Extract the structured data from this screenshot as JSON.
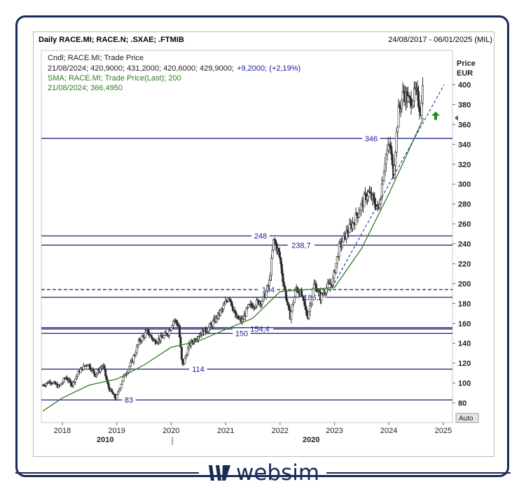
{
  "header": {
    "title": "Daily RACE.MI; RACE.N; .SXAE; .FTMIB",
    "date_range": "24/08/2017 - 06/01/2025 (MIL)"
  },
  "legend": {
    "line1": "Cndl; RACE.MI; Trade Price",
    "line2_values": "21/08/2024; 420,9000; 431,2000; 420,6000; 429,9000;",
    "line2_change": "+9,2000; (+2,19%)",
    "line3": "SMA; RACE.MI; Trade Price(Last);  200",
    "line4": "21/08/2024; 366,4950"
  },
  "axis": {
    "price_label": "Price",
    "currency_label": "EUR",
    "auto_label": "Auto",
    "decade_labels": [
      "2010",
      "2020"
    ]
  },
  "brand": {
    "name": "websim"
  },
  "colors": {
    "candles": "#2b2b2b",
    "sma": "#2e7d22",
    "levels": "#1a1a80",
    "label_blue": "#1a1a9c",
    "frame": "#1a2a57",
    "arrow": "#1e8c1e"
  },
  "chart_data": {
    "type": "candlestick",
    "title": "Daily RACE.MI; RACE.N; .SXAE; .FTMIB",
    "x_axis": {
      "ticks": [
        "2018",
        "2019",
        "2020",
        "2021",
        "2022",
        "2023",
        "2024",
        "2025"
      ]
    },
    "y_axis": {
      "label": "Price EUR",
      "ticks": [
        80,
        100,
        120,
        140,
        160,
        180,
        200,
        220,
        240,
        260,
        280,
        300,
        320,
        340,
        360,
        380,
        400
      ],
      "range": [
        70,
        432
      ]
    },
    "price_series": [
      [
        "2017-08-24",
        98
      ],
      [
        "2017-10-15",
        102
      ],
      [
        "2017-12-10",
        96
      ],
      [
        "2018-01-25",
        106
      ],
      [
        "2018-03-05",
        98
      ],
      [
        "2018-04-25",
        112
      ],
      [
        "2018-06-20",
        120
      ],
      [
        "2018-08-10",
        108
      ],
      [
        "2018-10-01",
        118
      ],
      [
        "2018-11-05",
        96
      ],
      [
        "2018-12-27",
        84
      ],
      [
        "2019-02-10",
        104
      ],
      [
        "2019-04-15",
        122
      ],
      [
        "2019-06-01",
        142
      ],
      [
        "2019-07-25",
        152
      ],
      [
        "2019-09-10",
        142
      ],
      [
        "2019-10-25",
        145
      ],
      [
        "2019-12-10",
        150
      ],
      [
        "2020-01-20",
        164
      ],
      [
        "2020-02-20",
        158
      ],
      [
        "2020-03-16",
        116
      ],
      [
        "2020-05-01",
        138
      ],
      [
        "2020-07-01",
        148
      ],
      [
        "2020-09-01",
        154
      ],
      [
        "2020-10-15",
        162
      ],
      [
        "2020-12-10",
        174
      ],
      [
        "2021-01-25",
        188
      ],
      [
        "2021-03-10",
        166
      ],
      [
        "2021-04-20",
        162
      ],
      [
        "2021-06-01",
        176
      ],
      [
        "2021-07-20",
        180
      ],
      [
        "2021-09-10",
        184
      ],
      [
        "2021-10-20",
        200
      ],
      [
        "2021-11-20",
        245
      ],
      [
        "2021-12-28",
        228
      ],
      [
        "2022-01-25",
        200
      ],
      [
        "2022-03-08",
        166
      ],
      [
        "2022-04-20",
        196
      ],
      [
        "2022-05-25",
        188
      ],
      [
        "2022-07-05",
        166
      ],
      [
        "2022-08-20",
        200
      ],
      [
        "2022-09-30",
        186
      ],
      [
        "2022-11-10",
        196
      ],
      [
        "2022-12-20",
        202
      ],
      [
        "2023-02-01",
        236
      ],
      [
        "2023-03-20",
        250
      ],
      [
        "2023-05-10",
        262
      ],
      [
        "2023-06-30",
        278
      ],
      [
        "2023-08-15",
        292
      ],
      [
        "2023-09-25",
        282
      ],
      [
        "2023-10-25",
        274
      ],
      [
        "2023-12-10",
        328
      ],
      [
        "2024-01-10",
        340
      ],
      [
        "2024-01-30",
        308
      ],
      [
        "2024-03-05",
        372
      ],
      [
        "2024-04-10",
        392
      ],
      [
        "2024-05-20",
        382
      ],
      [
        "2024-07-01",
        392
      ],
      [
        "2024-08-06",
        372
      ],
      [
        "2024-08-21",
        429.9
      ]
    ],
    "sma_200": [
      [
        "2017-08-24",
        72
      ],
      [
        "2018-01-01",
        85
      ],
      [
        "2018-07-01",
        98
      ],
      [
        "2019-01-01",
        104
      ],
      [
        "2019-07-01",
        118
      ],
      [
        "2020-01-01",
        136
      ],
      [
        "2020-07-01",
        142
      ],
      [
        "2021-01-01",
        154
      ],
      [
        "2021-07-01",
        165
      ],
      [
        "2022-01-01",
        192
      ],
      [
        "2022-07-01",
        194
      ],
      [
        "2023-01-01",
        196
      ],
      [
        "2023-07-01",
        235
      ],
      [
        "2024-01-01",
        290
      ],
      [
        "2024-08-21",
        366.495
      ]
    ],
    "horizontal_levels": [
      {
        "value": 346,
        "label": "346",
        "style": "solid"
      },
      {
        "value": 248,
        "label": "248",
        "style": "solid"
      },
      {
        "value": 238.7,
        "label": "238,7",
        "style": "solid"
      },
      {
        "value": 194,
        "label": "194",
        "style": "dashed"
      },
      {
        "value": 186.2,
        "label": "186,2",
        "style": "solid"
      },
      {
        "value": 154.4,
        "label": "154,4",
        "style": "solid"
      },
      {
        "value": 150,
        "label": "150",
        "style": "solid"
      },
      {
        "value": 114,
        "label": "114",
        "style": "solid"
      },
      {
        "value": 83,
        "label": "83",
        "style": "solid"
      }
    ],
    "trendline": {
      "from": [
        "2022-12-01",
        192
      ],
      "to": [
        "2025-01-06",
        400
      ],
      "style": "dashed"
    },
    "last_sma": {
      "date": "21/08/2024",
      "value": 366.495
    },
    "last_candle": {
      "date": "21/08/2024",
      "open": 420.9,
      "high": 431.2,
      "low": 420.6,
      "close": 429.9,
      "change": 9.2,
      "change_pct": 2.19
    }
  }
}
